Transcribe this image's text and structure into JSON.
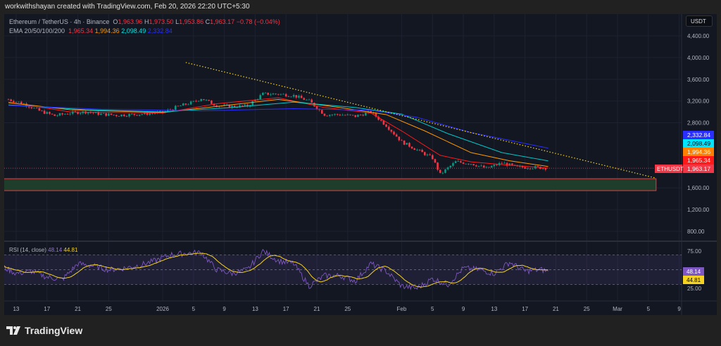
{
  "credit": "workwithshayan created with TradingView.com, Feb 20, 2026 22:20 UTC+5:30",
  "legend": {
    "symbol": "Ethereum / TetherUS · 4h · Binance",
    "o_label": "O",
    "o": "1,963.96",
    "h_label": "H",
    "h": "1,973.50",
    "l_label": "L",
    "l": "1,953.86",
    "c_label": "C",
    "c": "1,963.17",
    "change": "−0.78 (−0.04%)",
    "ema_label": "EMA 20/50/100/200",
    "ema20": "1,965.34",
    "ema50": "1,994.36",
    "ema100": "2,098.49",
    "ema200": "2,332.84"
  },
  "rsi_legend": {
    "label": "RSI (14, close)",
    "rsi": "48.14",
    "ma": "44.81"
  },
  "currency_button": "USDT",
  "brand": "TradingView",
  "colors": {
    "up": "#089981",
    "down": "#f23645",
    "ema20": "#ff1a1a",
    "ema50": "#ff9800",
    "ema100": "#00c8c8",
    "ema200": "#2a2eff",
    "rsi": "#7e57c2",
    "rsi_ma": "#f5d320",
    "trendline": "#f5d320",
    "zone_fill": "#1e3d2a",
    "zone_border": "#f23645"
  },
  "chart_data": {
    "type": "candlestick",
    "symbol": "ETHUSDT",
    "interval": "4h",
    "price_axis": {
      "ticks": [
        "4,400.00",
        "4,000.00",
        "3,600.00",
        "3,200.00",
        "2,800.00",
        "1,600.00",
        "1,200.00",
        "800.00"
      ],
      "tick_values": [
        4400,
        4000,
        3600,
        3200,
        2800,
        1600,
        1200,
        800
      ],
      "range": [
        500,
        4750
      ]
    },
    "time_axis": {
      "labels": [
        "13",
        "17",
        "21",
        "25",
        "2026",
        "5",
        "9",
        "13",
        "17",
        "21",
        "25",
        "Feb",
        "5",
        "9",
        "13",
        "17",
        "21",
        "25",
        "Mar",
        "5",
        "9"
      ],
      "dates": [
        "2025-12-13",
        "2025-12-17",
        "2025-12-21",
        "2025-12-25",
        "2026-01-01",
        "2026-01-05",
        "2026-01-09",
        "2026-01-13",
        "2026-01-17",
        "2026-01-21",
        "2026-01-25",
        "2026-02-01",
        "2026-02-05",
        "2026-02-09",
        "2026-02-13",
        "2026-02-17",
        "2026-02-21",
        "2026-02-25",
        "2026-03-01",
        "2026-03-05",
        "2026-03-09"
      ]
    },
    "close_points": [
      [
        "2025-12-12",
        3230
      ],
      [
        "2025-12-14",
        3150
      ],
      [
        "2025-12-16",
        3020
      ],
      [
        "2025-12-18",
        2930
      ],
      [
        "2025-12-20",
        2980
      ],
      [
        "2025-12-22",
        3000
      ],
      [
        "2025-12-24",
        2960
      ],
      [
        "2025-12-26",
        2940
      ],
      [
        "2025-12-28",
        2950
      ],
      [
        "2025-12-30",
        2970
      ],
      [
        "2026-01-01",
        2990
      ],
      [
        "2026-01-03",
        3100
      ],
      [
        "2026-01-05",
        3180
      ],
      [
        "2026-01-06",
        3250
      ],
      [
        "2026-01-08",
        3120
      ],
      [
        "2026-01-10",
        3100
      ],
      [
        "2026-01-12",
        3110
      ],
      [
        "2026-01-14",
        3330
      ],
      [
        "2026-01-16",
        3330
      ],
      [
        "2026-01-18",
        3300
      ],
      [
        "2026-01-20",
        3200
      ],
      [
        "2026-01-22",
        2950
      ],
      [
        "2026-01-24",
        2950
      ],
      [
        "2026-01-26",
        2920
      ],
      [
        "2026-01-28",
        3000
      ],
      [
        "2026-01-30",
        2750
      ],
      [
        "2026-02-01",
        2450
      ],
      [
        "2026-02-03",
        2300
      ],
      [
        "2026-02-05",
        2150
      ],
      [
        "2026-02-06",
        1850
      ],
      [
        "2026-02-08",
        2080
      ],
      [
        "2026-02-10",
        2050
      ],
      [
        "2026-02-12",
        1960
      ],
      [
        "2026-02-14",
        2060
      ],
      [
        "2026-02-16",
        1980
      ],
      [
        "2026-02-18",
        1980
      ],
      [
        "2026-02-20",
        1963.17
      ]
    ],
    "ema_points": {
      "ema20": [
        [
          "2025-12-12",
          3180
        ],
        [
          "2025-12-20",
          3000
        ],
        [
          "2026-01-01",
          2980
        ],
        [
          "2026-01-08",
          3150
        ],
        [
          "2026-01-16",
          3260
        ],
        [
          "2026-01-22",
          3080
        ],
        [
          "2026-01-28",
          2980
        ],
        [
          "2026-02-01",
          2650
        ],
        [
          "2026-02-06",
          2200
        ],
        [
          "2026-02-10",
          2080
        ],
        [
          "2026-02-14",
          2030
        ],
        [
          "2026-02-20",
          1965.34
        ]
      ],
      "ema50": [
        [
          "2025-12-12",
          3170
        ],
        [
          "2025-12-20",
          3040
        ],
        [
          "2026-01-01",
          2990
        ],
        [
          "2026-01-08",
          3100
        ],
        [
          "2026-01-16",
          3230
        ],
        [
          "2026-01-24",
          3080
        ],
        [
          "2026-01-30",
          2950
        ],
        [
          "2026-02-04",
          2650
        ],
        [
          "2026-02-10",
          2250
        ],
        [
          "2026-02-15",
          2100
        ],
        [
          "2026-02-20",
          1994.36
        ]
      ],
      "ema100": [
        [
          "2025-12-12",
          3130
        ],
        [
          "2025-12-22",
          3040
        ],
        [
          "2026-01-01",
          3000
        ],
        [
          "2026-01-10",
          3080
        ],
        [
          "2026-01-18",
          3180
        ],
        [
          "2026-01-26",
          3080
        ],
        [
          "2026-02-01",
          2960
        ],
        [
          "2026-02-07",
          2600
        ],
        [
          "2026-02-14",
          2250
        ],
        [
          "2026-02-20",
          2098.49
        ]
      ],
      "ema200": [
        [
          "2025-12-12",
          3120
        ],
        [
          "2025-12-24",
          3050
        ],
        [
          "2026-01-06",
          3020
        ],
        [
          "2026-01-18",
          3060
        ],
        [
          "2026-01-28",
          3030
        ],
        [
          "2026-02-03",
          2900
        ],
        [
          "2026-02-10",
          2620
        ],
        [
          "2026-02-20",
          2332.84
        ]
      ]
    },
    "price_labels": [
      {
        "value": "2,332.84",
        "color": "#2a2eff"
      },
      {
        "value": "2,098.49",
        "color": "#00e5ff"
      },
      {
        "value": "1,994.36",
        "color": "#ff8000"
      },
      {
        "value": "1,965.34",
        "color": "#ff1a1a"
      },
      {
        "value": "1,963.17",
        "color": "#f23645",
        "tag": "ETHUSDT"
      }
    ],
    "current_price": 1963.17,
    "trendline": [
      [
        "2026-01-04",
        3910
      ],
      [
        "2026-03-06",
        1780
      ]
    ],
    "support_zone": {
      "from": 1550,
      "to": 1770,
      "start": "2025-12-11",
      "end": "2026-03-06"
    },
    "rsi": {
      "period": 14,
      "levels": [
        70,
        50,
        30
      ],
      "axis_ticks": [
        "75.00",
        "25.00"
      ],
      "tick_values": [
        75,
        25
      ],
      "values": [
        [
          "2025-12-11",
          55
        ],
        [
          "2025-12-13",
          45
        ],
        [
          "2025-12-15",
          48
        ],
        [
          "2025-12-17",
          40
        ],
        [
          "2025-12-19",
          37
        ],
        [
          "2025-12-21",
          58
        ],
        [
          "2025-12-23",
          55
        ],
        [
          "2025-12-25",
          50
        ],
        [
          "2025-12-27",
          52
        ],
        [
          "2025-12-29",
          56
        ],
        [
          "2025-12-31",
          62
        ],
        [
          "2026-01-02",
          70
        ],
        [
          "2026-01-04",
          72
        ],
        [
          "2026-01-06",
          73
        ],
        [
          "2026-01-08",
          50
        ],
        [
          "2026-01-10",
          45
        ],
        [
          "2026-01-12",
          50
        ],
        [
          "2026-01-14",
          75
        ],
        [
          "2026-01-16",
          62
        ],
        [
          "2026-01-18",
          58
        ],
        [
          "2026-01-20",
          28
        ],
        [
          "2026-01-22",
          42
        ],
        [
          "2026-01-24",
          42
        ],
        [
          "2026-01-26",
          35
        ],
        [
          "2026-01-28",
          58
        ],
        [
          "2026-01-30",
          48
        ],
        [
          "2026-02-01",
          28
        ],
        [
          "2026-02-03",
          25
        ],
        [
          "2026-02-05",
          38
        ],
        [
          "2026-02-07",
          30
        ],
        [
          "2026-02-09",
          52
        ],
        [
          "2026-02-11",
          50
        ],
        [
          "2026-02-13",
          45
        ],
        [
          "2026-02-15",
          60
        ],
        [
          "2026-02-17",
          48
        ],
        [
          "2026-02-19",
          50
        ],
        [
          "2026-02-20",
          48.14
        ]
      ],
      "ma_last": 44.81,
      "labels": [
        {
          "value": "48.14",
          "color": "#7e57c2"
        },
        {
          "value": "44.81",
          "color": "#f5d320"
        }
      ]
    }
  }
}
